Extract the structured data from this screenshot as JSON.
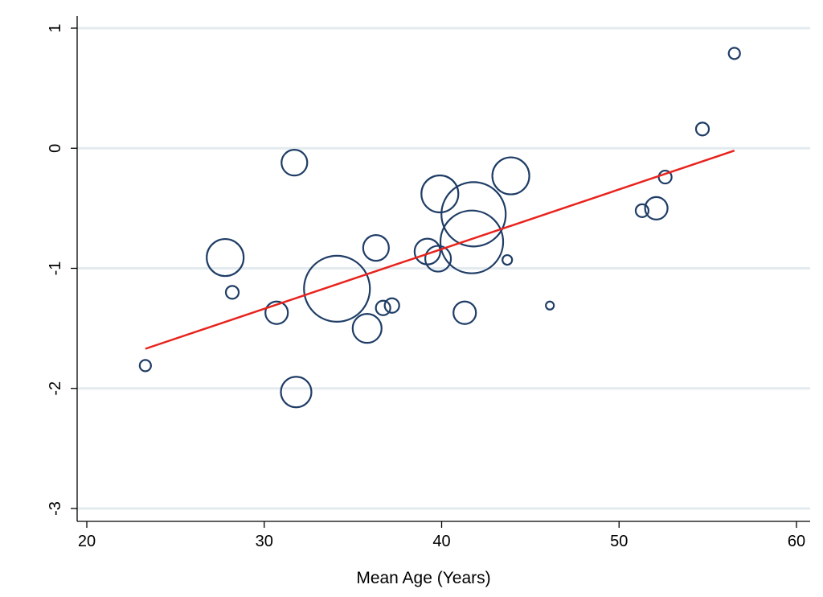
{
  "chart_data": {
    "type": "scatter",
    "title": "",
    "xlabel": "Mean Age (Years)",
    "ylabel": "",
    "xlim": [
      19.5,
      61
    ],
    "ylim": [
      -3.1,
      1.1
    ],
    "x_ticks": [
      20,
      30,
      40,
      50,
      60
    ],
    "y_ticks": [
      -3,
      -2,
      -1,
      0,
      1
    ],
    "grid": "horizontal",
    "colors": {
      "marker": "#1f3d66",
      "fit_line": "#e8231d",
      "grid": "#e3ebef"
    },
    "points": [
      {
        "x": 23.3,
        "y": -1.81,
        "size": 7
      },
      {
        "x": 27.8,
        "y": -0.91,
        "size": 23
      },
      {
        "x": 28.2,
        "y": -1.2,
        "size": 8
      },
      {
        "x": 30.7,
        "y": -1.37,
        "size": 14
      },
      {
        "x": 31.7,
        "y": -0.12,
        "size": 16
      },
      {
        "x": 31.8,
        "y": -2.03,
        "size": 19
      },
      {
        "x": 34.1,
        "y": -1.17,
        "size": 41
      },
      {
        "x": 35.8,
        "y": -1.5,
        "size": 18
      },
      {
        "x": 36.3,
        "y": -0.83,
        "size": 16
      },
      {
        "x": 36.7,
        "y": -1.33,
        "size": 9
      },
      {
        "x": 37.2,
        "y": -1.31,
        "size": 9
      },
      {
        "x": 39.2,
        "y": -0.86,
        "size": 16
      },
      {
        "x": 39.8,
        "y": -0.92,
        "size": 16
      },
      {
        "x": 39.9,
        "y": -0.38,
        "size": 23
      },
      {
        "x": 41.3,
        "y": -1.37,
        "size": 14
      },
      {
        "x": 41.7,
        "y": -0.78,
        "size": 39
      },
      {
        "x": 41.8,
        "y": -0.55,
        "size": 40
      },
      {
        "x": 43.7,
        "y": -0.93,
        "size": 6
      },
      {
        "x": 43.9,
        "y": -0.23,
        "size": 23
      },
      {
        "x": 46.1,
        "y": -1.31,
        "size": 5
      },
      {
        "x": 51.3,
        "y": -0.52,
        "size": 8
      },
      {
        "x": 52.1,
        "y": -0.5,
        "size": 14
      },
      {
        "x": 52.6,
        "y": -0.24,
        "size": 8
      },
      {
        "x": 54.7,
        "y": 0.16,
        "size": 8
      },
      {
        "x": 56.5,
        "y": 0.79,
        "size": 7
      }
    ],
    "fit_line": [
      {
        "x": 23.3,
        "y": -1.67
      },
      {
        "x": 56.5,
        "y": -0.02
      }
    ]
  }
}
